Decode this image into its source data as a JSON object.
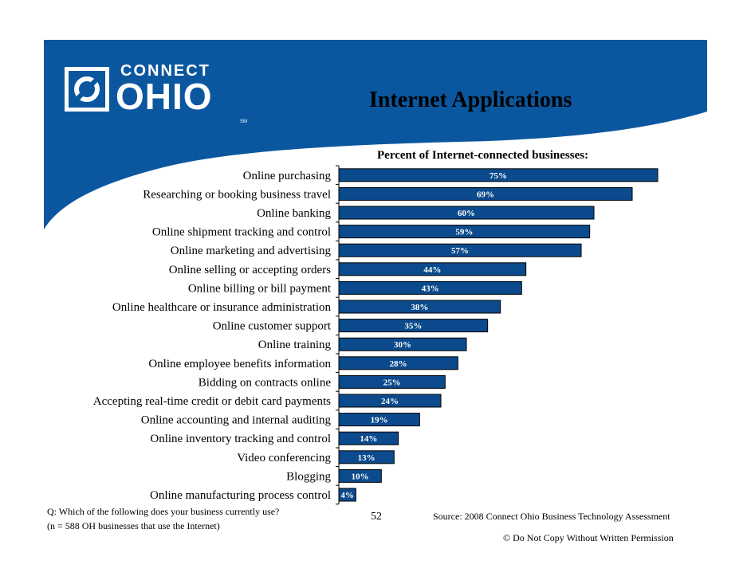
{
  "colors": {
    "brand_blue": "#0b579f",
    "bar_fill": "#0b4a8c",
    "bar_stroke": "#000000",
    "label_text": "#ffffff"
  },
  "logo": {
    "connect": "CONNECT",
    "ohio": "OHIO",
    "mark": "SM",
    "icon": "ohio-state-outline-icon"
  },
  "title": "Internet Applications",
  "chart_data": {
    "type": "bar",
    "orientation": "horizontal",
    "subtitle": "Percent of Internet-connected businesses:",
    "categories": [
      "Online purchasing",
      "Researching or booking business travel",
      "Online banking",
      "Online shipment tracking and control",
      "Online marketing and advertising",
      "Online selling or accepting orders",
      "Online billing or bill payment",
      "Online healthcare or insurance administration",
      "Online customer support",
      "Online training",
      "Online employee benefits information",
      "Bidding on contracts online",
      "Accepting real-time credit or debit card payments",
      "Online accounting and internal auditing",
      "Online inventory tracking and control",
      "Video conferencing",
      "Blogging",
      "Online manufacturing process control"
    ],
    "values": [
      75,
      69,
      60,
      59,
      57,
      44,
      43,
      38,
      35,
      30,
      28,
      25,
      24,
      19,
      14,
      13,
      10,
      4
    ],
    "data_labels": [
      "75%",
      "69%",
      "60%",
      "59%",
      "57%",
      "44%",
      "43%",
      "38%",
      "35%",
      "30%",
      "28%",
      "25%",
      "24%",
      "19%",
      "14%",
      "13%",
      "10%",
      "4%"
    ],
    "xlim": [
      0,
      75
    ],
    "grid": false,
    "legend": "none"
  },
  "footer": {
    "question": "Q: Which of the following does your business currently use?",
    "sample": "(n = 588 OH businesses that use the Internet)",
    "page_number": "52",
    "source": "Source: 2008 Connect Ohio Business Technology Assessment",
    "copyright": "© Do Not Copy Without Written Permission"
  }
}
